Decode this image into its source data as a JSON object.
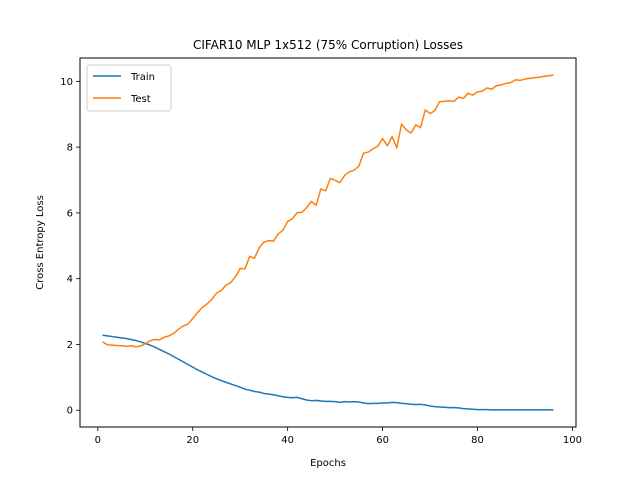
{
  "chart_data": {
    "type": "line",
    "title": "CIFAR10 MLP 1x512 (75% Corruption) Losses",
    "xlabel": "Epochs",
    "ylabel": "Cross Entropy Loss",
    "xlim": [
      -3.75,
      100.75
    ],
    "ylim": [
      -0.51,
      10.71
    ],
    "xticks": [
      0,
      20,
      40,
      60,
      80,
      100
    ],
    "yticks": [
      0,
      2,
      4,
      6,
      8,
      10
    ],
    "grid": false,
    "legend_position": "upper-left",
    "series": [
      {
        "name": "Train",
        "color": "#1f77b4",
        "x": [
          1,
          2,
          3,
          4,
          5,
          6,
          7,
          8,
          9,
          10,
          11,
          12,
          13,
          14,
          15,
          16,
          17,
          18,
          19,
          20,
          21,
          22,
          23,
          24,
          25,
          26,
          27,
          28,
          29,
          30,
          31,
          32,
          33,
          34,
          35,
          36,
          37,
          38,
          39,
          40,
          41,
          42,
          43,
          44,
          45,
          46,
          47,
          48,
          49,
          50,
          51,
          52,
          53,
          54,
          55,
          56,
          57,
          58,
          59,
          60,
          61,
          62,
          63,
          64,
          65,
          66,
          67,
          68,
          69,
          70,
          71,
          72,
          73,
          74,
          75,
          76,
          77,
          78,
          79,
          80,
          81,
          82,
          83,
          84,
          85,
          86,
          87,
          88,
          89,
          90,
          91,
          92,
          93,
          94,
          95,
          96
        ],
        "values": [
          2.28,
          2.26,
          2.24,
          2.22,
          2.2,
          2.18,
          2.15,
          2.12,
          2.08,
          2.03,
          1.98,
          1.92,
          1.85,
          1.78,
          1.71,
          1.63,
          1.55,
          1.47,
          1.39,
          1.31,
          1.23,
          1.16,
          1.09,
          1.02,
          0.96,
          0.9,
          0.85,
          0.8,
          0.75,
          0.7,
          0.64,
          0.61,
          0.57,
          0.55,
          0.51,
          0.49,
          0.47,
          0.44,
          0.41,
          0.39,
          0.38,
          0.39,
          0.35,
          0.31,
          0.29,
          0.3,
          0.28,
          0.27,
          0.27,
          0.26,
          0.24,
          0.26,
          0.25,
          0.26,
          0.25,
          0.22,
          0.2,
          0.21,
          0.21,
          0.22,
          0.22,
          0.24,
          0.23,
          0.21,
          0.2,
          0.18,
          0.17,
          0.18,
          0.16,
          0.13,
          0.11,
          0.1,
          0.09,
          0.08,
          0.08,
          0.07,
          0.05,
          0.04,
          0.03,
          0.02,
          0.02,
          0.02,
          0.01,
          0.01,
          0.01,
          0.01,
          0.01,
          0.01,
          0.01,
          0.01,
          0.01,
          0.01,
          0.01,
          0.01,
          0.01,
          0.01
        ]
      },
      {
        "name": "Test",
        "color": "#ff7f0e",
        "x": [
          1,
          2,
          3,
          4,
          5,
          6,
          7,
          8,
          9,
          10,
          11,
          12,
          13,
          14,
          15,
          16,
          17,
          18,
          19,
          20,
          21,
          22,
          23,
          24,
          25,
          26,
          27,
          28,
          29,
          30,
          31,
          32,
          33,
          34,
          35,
          36,
          37,
          38,
          39,
          40,
          41,
          42,
          43,
          44,
          45,
          46,
          47,
          48,
          49,
          50,
          51,
          52,
          53,
          54,
          55,
          56,
          57,
          58,
          59,
          60,
          61,
          62,
          63,
          64,
          65,
          66,
          67,
          68,
          69,
          70,
          71,
          72,
          73,
          74,
          75,
          76,
          77,
          78,
          79,
          80,
          81,
          82,
          83,
          84,
          85,
          86,
          87,
          88,
          89,
          90,
          91,
          92,
          93,
          94,
          95,
          96
        ],
        "values": [
          2.08,
          1.99,
          1.98,
          1.97,
          1.96,
          1.94,
          1.96,
          1.93,
          1.95,
          2.02,
          2.11,
          2.15,
          2.14,
          2.22,
          2.26,
          2.34,
          2.46,
          2.56,
          2.62,
          2.79,
          2.97,
          3.12,
          3.23,
          3.37,
          3.56,
          3.64,
          3.8,
          3.88,
          4.06,
          4.31,
          4.3,
          4.68,
          4.62,
          4.94,
          5.11,
          5.16,
          5.14,
          5.36,
          5.47,
          5.74,
          5.82,
          6.01,
          6.02,
          6.16,
          6.35,
          6.23,
          6.73,
          6.67,
          7.05,
          6.99,
          6.92,
          7.14,
          7.25,
          7.3,
          7.42,
          7.82,
          7.85,
          7.95,
          8.03,
          8.26,
          8.04,
          8.32,
          7.98,
          8.7,
          8.52,
          8.43,
          8.68,
          8.59,
          9.13,
          9.02,
          9.11,
          9.38,
          9.39,
          9.41,
          9.39,
          9.52,
          9.48,
          9.64,
          9.58,
          9.68,
          9.7,
          9.8,
          9.76,
          9.87,
          9.89,
          9.94,
          9.96,
          10.05,
          10.03,
          10.07,
          10.09,
          10.11,
          10.13,
          10.15,
          10.17,
          10.19
        ]
      }
    ]
  }
}
